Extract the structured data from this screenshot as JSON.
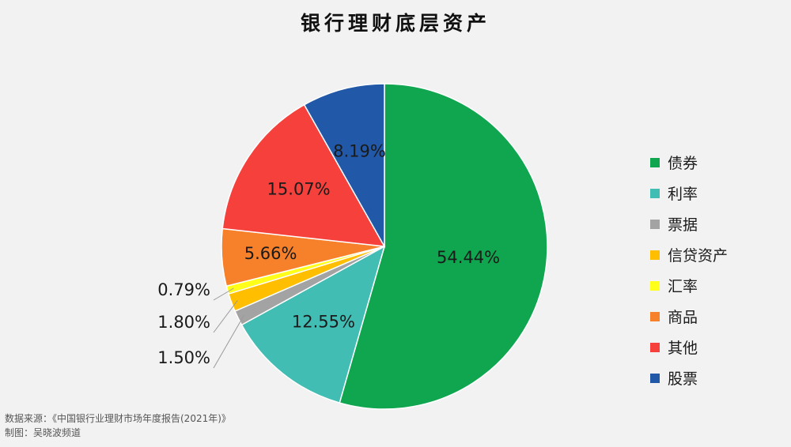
{
  "chart_data": {
    "type": "pie",
    "title": "银行理财底层资产",
    "slices": [
      {
        "label": "债券",
        "value": 54.44,
        "display": "54.44%",
        "color": "#0fa64f"
      },
      {
        "label": "利率",
        "value": 12.55,
        "display": "12.55%",
        "color": "#41bdb4"
      },
      {
        "label": "票据",
        "value": 1.5,
        "display": "1.50%",
        "color": "#a3a3a3"
      },
      {
        "label": "信贷资产",
        "value": 1.8,
        "display": "1.80%",
        "color": "#ffbe00"
      },
      {
        "label": "汇率",
        "value": 0.79,
        "display": "0.79%",
        "color": "#ffff1a"
      },
      {
        "label": "商品",
        "value": 5.66,
        "display": "5.66%",
        "color": "#f7802a"
      },
      {
        "label": "其他",
        "value": 15.07,
        "display": "15.07%",
        "color": "#f6403c"
      },
      {
        "label": "股票",
        "value": 8.19,
        "display": "8.19%",
        "color": "#2258a8"
      }
    ],
    "legend_position": "right"
  },
  "footer": {
    "source": "数据来源：《中国银行业理财市场年度报告(2021年)》",
    "credit": "制图：吴晓波频道"
  }
}
